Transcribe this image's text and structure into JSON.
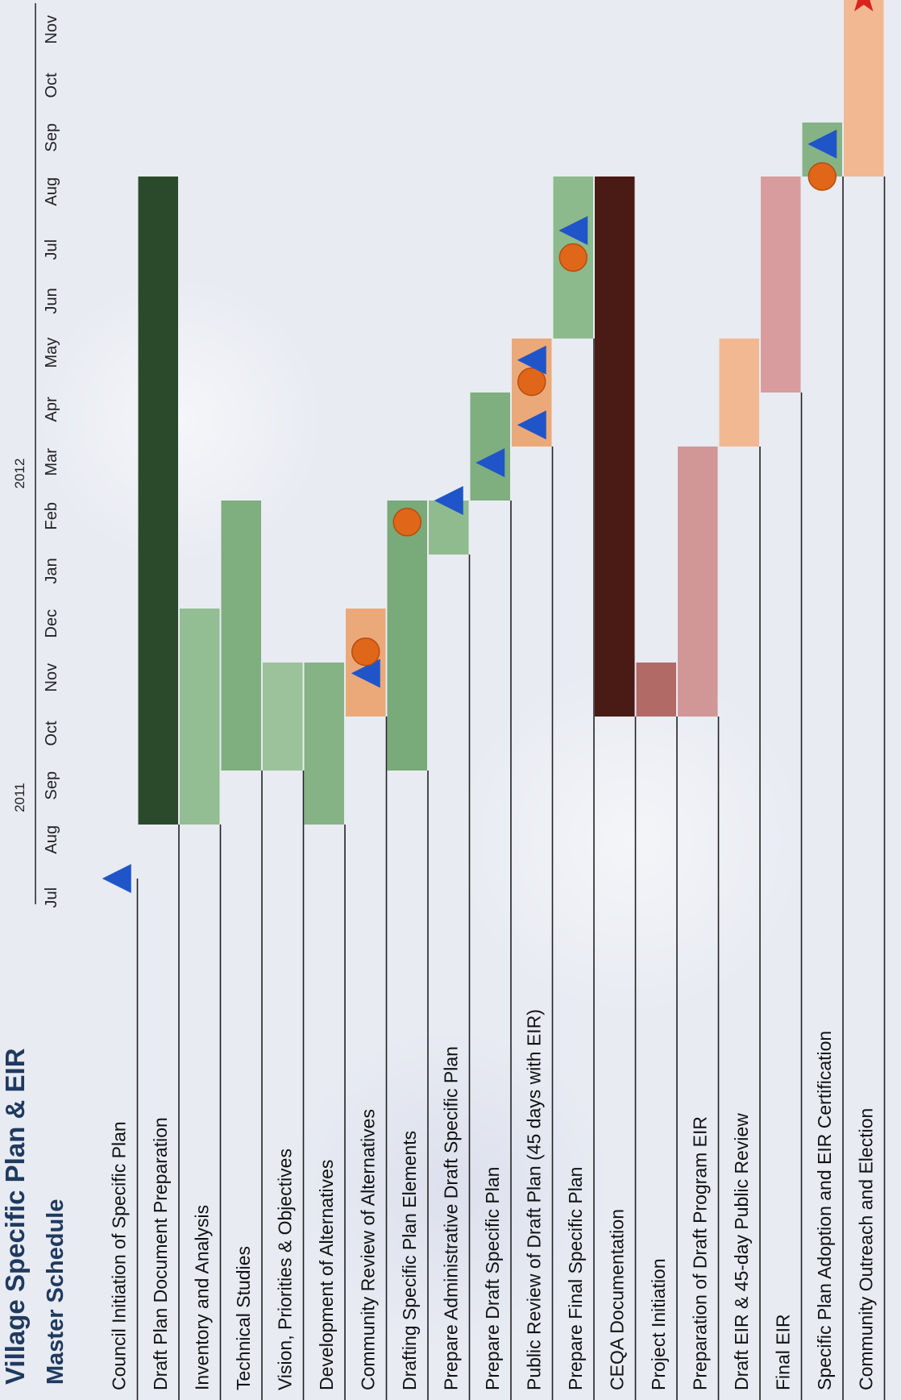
{
  "title": "Village Specific Plan & EIR",
  "subtitle": "Master Schedule",
  "chart_data": {
    "type": "gantt",
    "title": "Village Specific Plan & EIR",
    "subtitle": "Master Schedule",
    "years": [
      {
        "label": "2011",
        "month": "Aug"
      },
      {
        "label": "2012",
        "month": "Feb"
      }
    ],
    "months": [
      "Jul",
      "Aug",
      "Sep",
      "Oct",
      "Nov",
      "Dec",
      "Jan",
      "Feb",
      "Mar",
      "Apr",
      "May",
      "Jun",
      "Jul",
      "Aug",
      "Sep",
      "Oct",
      "Nov"
    ],
    "legend": {
      "triangle": "blue triangle",
      "circle": "orange circle",
      "star": "red star"
    },
    "tasks": [
      {
        "label": "Council Initiation of Specific Plan",
        "start": null,
        "end": null,
        "color": "",
        "markers": [
          {
            "type": "triangle",
            "month": 0.0
          }
        ]
      },
      {
        "label": "Draft Plan Document Preparation",
        "start": 1.0,
        "end": 13.0,
        "color": "#2b4a2b",
        "markers": []
      },
      {
        "label": "Inventory and Analysis",
        "start": 1.0,
        "end": 5.0,
        "color": "#93bd93",
        "markers": []
      },
      {
        "label": "Technical Studies",
        "start": 2.0,
        "end": 7.0,
        "color": "#7fae7f",
        "markers": []
      },
      {
        "label": "Vision, Priorities & Objectives",
        "start": 2.0,
        "end": 4.0,
        "color": "#9bc29b",
        "markers": []
      },
      {
        "label": "Development of Alternatives",
        "start": 1.0,
        "end": 4.0,
        "color": "#86b386",
        "markers": []
      },
      {
        "label": "Community Review of Alternatives",
        "start": 3.0,
        "end": 5.0,
        "color": "#eba97a",
        "markers": [
          {
            "type": "triangle",
            "month": 3.8
          },
          {
            "type": "circle",
            "month": 4.2
          }
        ]
      },
      {
        "label": "Drafting Specific Plan Elements",
        "start": 2.0,
        "end": 7.0,
        "color": "#79aa79",
        "markers": [
          {
            "type": "circle",
            "month": 6.6
          }
        ]
      },
      {
        "label": "Prepare Administrative Draft Specific Plan",
        "start": 6.0,
        "end": 7.0,
        "color": "#8fbb8f",
        "markers": [
          {
            "type": "triangle",
            "month": 7.0
          }
        ]
      },
      {
        "label": "Prepare Draft Specific Plan",
        "start": 7.0,
        "end": 9.0,
        "color": "#7fae7f",
        "markers": [
          {
            "type": "triangle",
            "month": 7.7
          }
        ]
      },
      {
        "label": "Public Review of Draft Plan (45 days with EIR)",
        "start": 8.0,
        "end": 10.0,
        "color": "#eba97a",
        "markers": [
          {
            "type": "triangle",
            "month": 8.4
          },
          {
            "type": "circle",
            "month": 9.2
          },
          {
            "type": "triangle",
            "month": 9.6
          }
        ]
      },
      {
        "label": "Prepare Final Specific Plan",
        "start": 10.0,
        "end": 13.0,
        "color": "#8cba8c",
        "markers": [
          {
            "type": "circle",
            "month": 11.5
          },
          {
            "type": "triangle",
            "month": 12.0
          }
        ]
      },
      {
        "label": "CEQA Documentation",
        "start": 3.0,
        "end": 13.0,
        "color": "#4a1a14",
        "markers": []
      },
      {
        "label": "Project Initiation",
        "start": 3.0,
        "end": 4.0,
        "color": "#b26a66",
        "markers": []
      },
      {
        "label": "Preparation of Draft Program EIR",
        "start": 3.0,
        "end": 8.0,
        "color": "#d19696",
        "markers": []
      },
      {
        "label": "Draft EIR & 45-day Public Review",
        "start": 8.0,
        "end": 10.0,
        "color": "#f2b892",
        "markers": []
      },
      {
        "label": "Final EIR",
        "start": 9.0,
        "end": 13.0,
        "color": "#d89c9e",
        "markers": []
      },
      {
        "label": "Specific Plan Adoption and EIR Certification",
        "start": 13.0,
        "end": 14.0,
        "color": "#86b386",
        "markers": [
          {
            "type": "circle",
            "month": 13.0
          },
          {
            "type": "triangle",
            "month": 13.6
          }
        ]
      },
      {
        "label": "Community Outreach and Election",
        "start": 13.0,
        "end": 17.0,
        "color": "#f2b892",
        "markers": [
          {
            "type": "star",
            "month": 16.3
          }
        ]
      }
    ]
  }
}
